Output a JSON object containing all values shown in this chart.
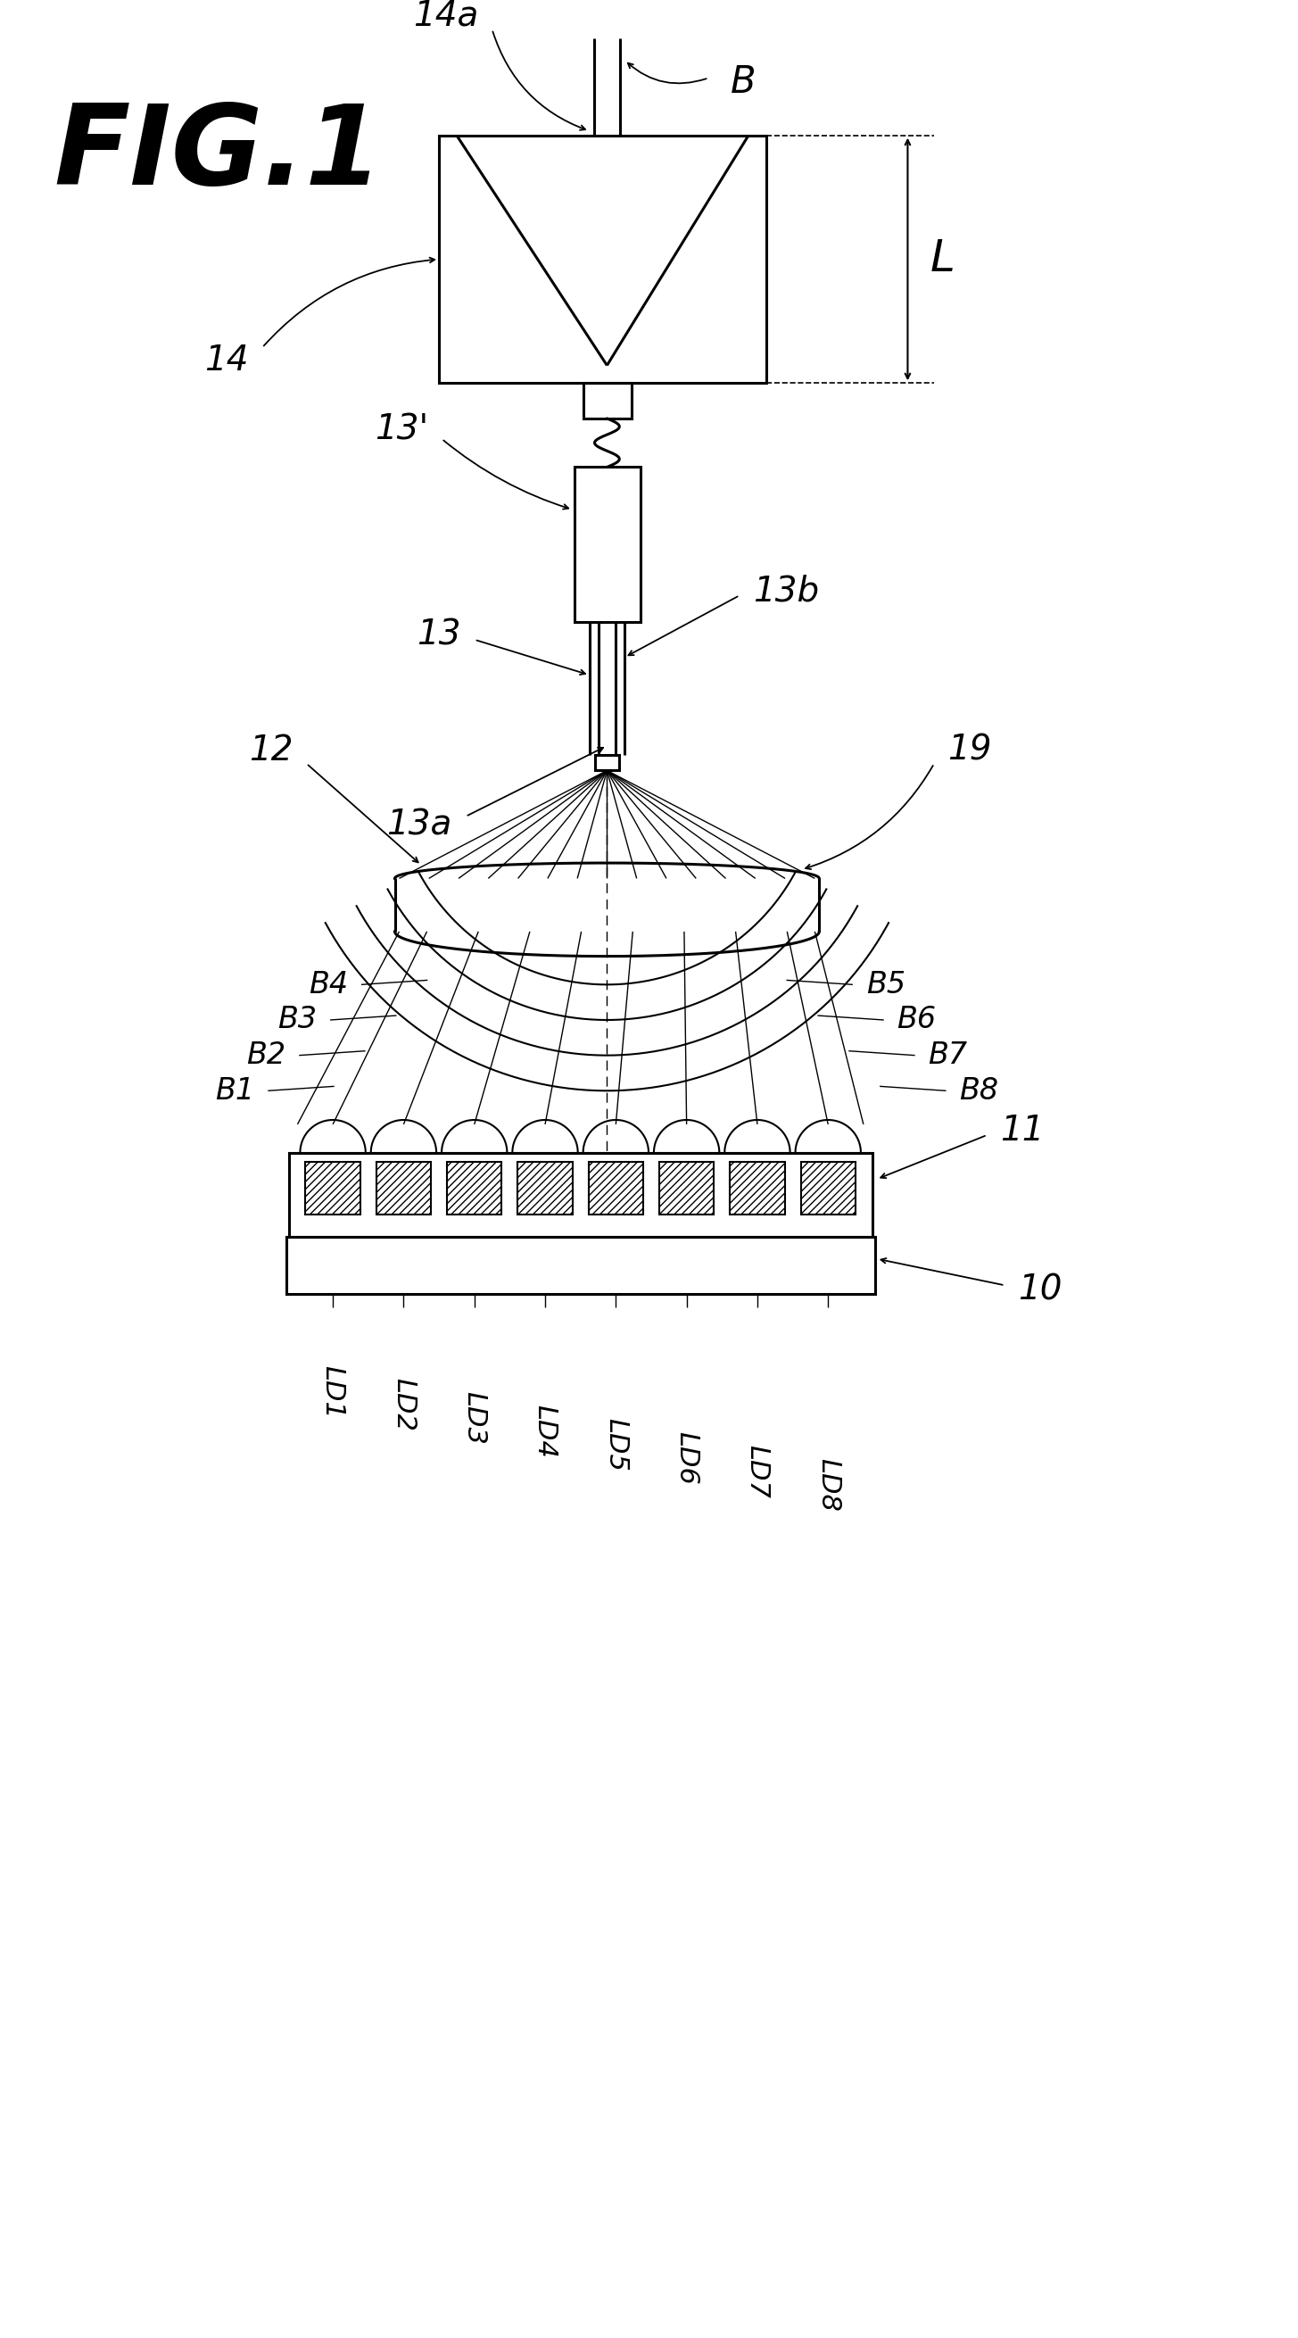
{
  "bg_color": "#ffffff",
  "line_color": "#000000",
  "fig_width": 14.55,
  "fig_height": 26.2,
  "labels": {
    "fig": "FIG.1",
    "B": "B",
    "14a": "14a",
    "14": "14",
    "L": "L",
    "13prime": "13'",
    "13": "13",
    "13b": "13b",
    "13a": "13a",
    "12": "12",
    "19": "19",
    "B4": "B4",
    "B3": "B3",
    "B2": "B2",
    "B1": "B1",
    "B5": "B5",
    "B6": "B6",
    "B7": "B7",
    "B8": "B8",
    "11": "11",
    "10": "10",
    "LD1": "LD1",
    "LD2": "LD2",
    "LD3": "LD3",
    "LD4": "LD4",
    "LD5": "LD5",
    "LD6": "LD6",
    "LD7": "LD7",
    "LD8": "LD8"
  }
}
